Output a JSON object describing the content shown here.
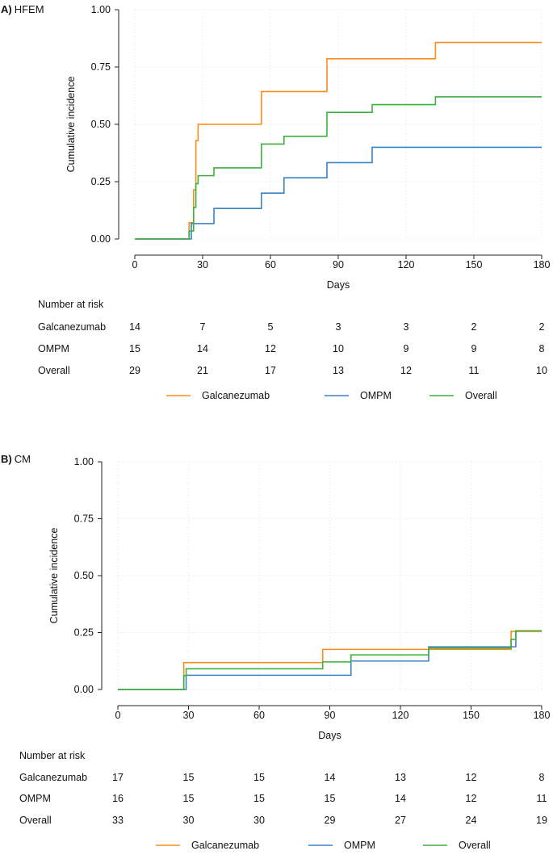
{
  "chart_data": [
    {
      "type": "line",
      "step": true,
      "panel_label": "A)",
      "title": "HFEM",
      "xlabel": "Days",
      "ylabel": "Cumulative incidence",
      "xlim": [
        0,
        180
      ],
      "ylim": [
        0,
        1
      ],
      "xticks": [
        0,
        30,
        60,
        90,
        120,
        150,
        180
      ],
      "yticks": [
        "0.00",
        "0.25",
        "0.50",
        "0.75",
        "1.00"
      ],
      "yticks_values": [
        0,
        0.25,
        0.5,
        0.75,
        1.0
      ],
      "grid": true,
      "series": [
        {
          "name": "Galcanezumab",
          "color": "#ff8c1a",
          "x": [
            0,
            24,
            26,
            27,
            28,
            56,
            85,
            133,
            180
          ],
          "y": [
            0,
            0.071,
            0.214,
            0.429,
            0.5,
            0.643,
            0.786,
            0.857,
            0.857
          ]
        },
        {
          "name": "OMPM",
          "color": "#3b82c4",
          "x": [
            0,
            25,
            26,
            35,
            56,
            66,
            85,
            105,
            180
          ],
          "y": [
            0,
            0.067,
            0.067,
            0.133,
            0.2,
            0.267,
            0.333,
            0.4,
            0.4
          ]
        },
        {
          "name": "Overall",
          "color": "#3cb03c",
          "x": [
            0,
            24,
            26,
            27,
            28,
            30,
            35,
            56,
            66,
            85,
            105,
            133,
            180
          ],
          "y": [
            0,
            0.035,
            0.138,
            0.241,
            0.276,
            0.276,
            0.31,
            0.414,
            0.448,
            0.552,
            0.586,
            0.62,
            0.62
          ]
        }
      ],
      "risk_table": {
        "header": "Number at risk",
        "rows": [
          {
            "label": "Galcanezumab",
            "values": [
              "14",
              "7",
              "5",
              "3",
              "3",
              "2",
              "2"
            ]
          },
          {
            "label": "OMPM",
            "values": [
              "15",
              "14",
              "12",
              "10",
              "9",
              "9",
              "8"
            ]
          },
          {
            "label": "Overall",
            "values": [
              "29",
              "21",
              "17",
              "13",
              "12",
              "11",
              "10"
            ]
          }
        ]
      },
      "legend": [
        "Galcanezumab",
        "OMPM",
        "Overall"
      ]
    },
    {
      "type": "line",
      "step": true,
      "panel_label": "B)",
      "title": "CM",
      "xlabel": "Days",
      "ylabel": "Cumulative incidence",
      "xlim": [
        0,
        180
      ],
      "ylim": [
        0,
        1
      ],
      "xticks": [
        0,
        30,
        60,
        90,
        120,
        150,
        180
      ],
      "yticks": [
        "0.00",
        "0.25",
        "0.50",
        "0.75",
        "1.00"
      ],
      "yticks_values": [
        0,
        0.25,
        0.5,
        0.75,
        1.0
      ],
      "grid": true,
      "series": [
        {
          "name": "Galcanezumab",
          "color": "#ff8c1a",
          "x": [
            0,
            28,
            87,
            167,
            180
          ],
          "y": [
            0,
            0.118,
            0.176,
            0.255,
            0.255
          ]
        },
        {
          "name": "OMPM",
          "color": "#3b82c4",
          "x": [
            0,
            29,
            99,
            132,
            169,
            180
          ],
          "y": [
            0,
            0.0625,
            0.125,
            0.1875,
            0.258,
            0.258
          ]
        },
        {
          "name": "Overall",
          "color": "#3cb03c",
          "x": [
            0,
            28,
            29,
            87,
            99,
            132,
            167,
            169,
            180
          ],
          "y": [
            0,
            0.061,
            0.091,
            0.121,
            0.152,
            0.182,
            0.22,
            0.258,
            0.258
          ]
        }
      ],
      "risk_table": {
        "header": "Number at risk",
        "rows": [
          {
            "label": "Galcanezumab",
            "values": [
              "17",
              "15",
              "15",
              "14",
              "13",
              "12",
              "8"
            ]
          },
          {
            "label": "OMPM",
            "values": [
              "16",
              "15",
              "15",
              "15",
              "14",
              "12",
              "11"
            ]
          },
          {
            "label": "Overall",
            "values": [
              "33",
              "30",
              "30",
              "29",
              "27",
              "24",
              "19"
            ]
          }
        ]
      },
      "legend": [
        "Galcanezumab",
        "OMPM",
        "Overall"
      ]
    }
  ]
}
